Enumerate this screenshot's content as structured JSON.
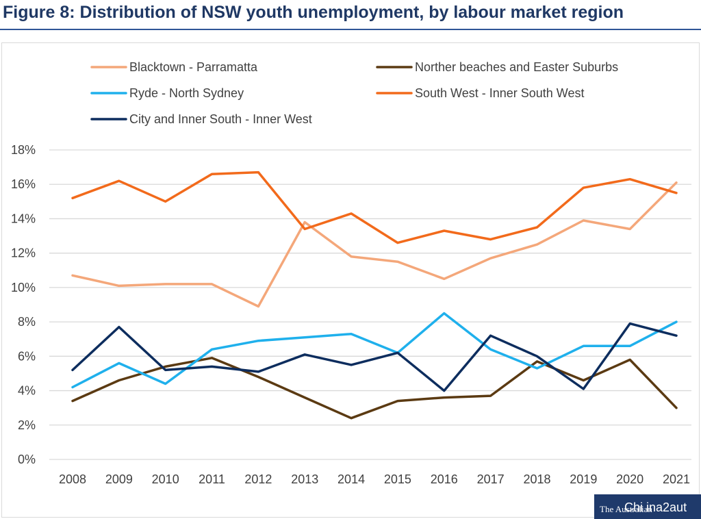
{
  "figure_title": "Figure 8: Distribution of NSW youth unemployment, by labour market region",
  "watermark": {
    "logo": "The Australian",
    "text": "Chi ina2aut"
  },
  "chart_data": {
    "type": "line",
    "title": "",
    "xlabel": "",
    "ylabel": "",
    "x": [
      "2008",
      "2009",
      "2010",
      "2011",
      "2012",
      "2013",
      "2014",
      "2015",
      "2016",
      "2017",
      "2018",
      "2019",
      "2020",
      "2021"
    ],
    "ylim": [
      0,
      18
    ],
    "yticks": [
      0,
      2,
      4,
      6,
      8,
      10,
      12,
      14,
      16,
      18
    ],
    "ytick_labels": [
      "0%",
      "2%",
      "4%",
      "6%",
      "8%",
      "10%",
      "12%",
      "14%",
      "16%",
      "18%"
    ],
    "grid": "horizontal",
    "legend_position": "top",
    "series": [
      {
        "name": "Blacktown - Parramatta",
        "color": "#f4a77a",
        "values": [
          10.7,
          10.1,
          10.2,
          10.2,
          8.9,
          13.8,
          11.8,
          11.5,
          10.5,
          11.7,
          12.5,
          13.9,
          13.4,
          16.1
        ]
      },
      {
        "name": "Norther beaches and Easter Suburbs",
        "color": "#5b3a12",
        "values": [
          3.4,
          4.6,
          5.4,
          5.9,
          4.8,
          3.6,
          2.4,
          3.4,
          3.6,
          3.7,
          5.7,
          4.6,
          5.8,
          3.0
        ]
      },
      {
        "name": "Ryde - North Sydney",
        "color": "#1fb0ec",
        "values": [
          4.2,
          5.6,
          4.4,
          6.4,
          6.9,
          7.1,
          7.3,
          6.2,
          8.5,
          6.4,
          5.3,
          6.6,
          6.6,
          8.0
        ]
      },
      {
        "name": "South West - Inner South West",
        "color": "#f26a1b",
        "values": [
          15.2,
          16.2,
          15.0,
          16.6,
          16.7,
          13.4,
          14.3,
          12.6,
          13.3,
          12.8,
          13.5,
          15.8,
          16.3,
          15.5
        ]
      },
      {
        "name": "City and Inner South - Inner West",
        "color": "#0d2d5e",
        "values": [
          5.2,
          7.7,
          5.2,
          5.4,
          5.1,
          6.1,
          5.5,
          6.2,
          4.0,
          7.2,
          6.0,
          4.1,
          7.9,
          7.2
        ]
      }
    ]
  }
}
